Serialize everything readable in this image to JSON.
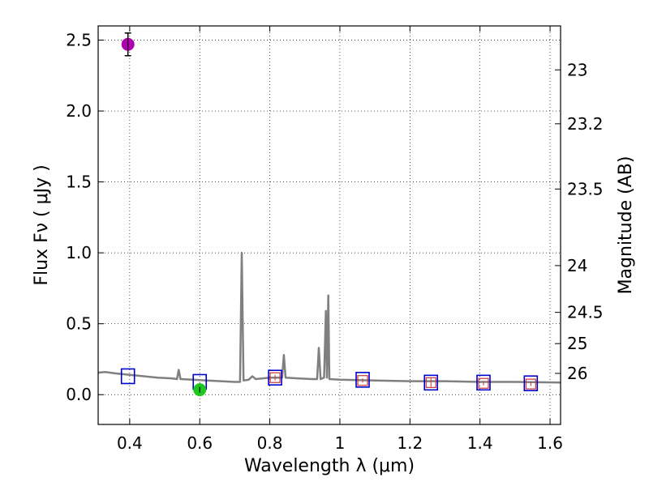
{
  "chart_data": {
    "type": "scatter",
    "xlabel": "Wavelength  λ (μm)",
    "ylabel": "Flux  Fν  ( μJy )",
    "y2label": "Magnitude (AB)",
    "xlim": [
      0.31,
      1.63
    ],
    "ylim": [
      -0.21,
      2.6
    ],
    "xticks": [
      0.4,
      0.6,
      0.8,
      1.0,
      1.2,
      1.4,
      1.6
    ],
    "xtick_labels": [
      "0.4",
      "0.6",
      "0.8",
      "1",
      "1.2",
      "1.4",
      "1.6"
    ],
    "yticks": [
      0.0,
      0.5,
      1.0,
      1.5,
      2.0,
      2.5
    ],
    "ytick_labels": [
      "0.0",
      "0.5",
      "1.0",
      "1.5",
      "2.0",
      "2.5"
    ],
    "y2ticks": [
      {
        "label": "23",
        "flux": 2.29
      },
      {
        "label": "23.2",
        "flux": 1.91
      },
      {
        "label": "23.5",
        "flux": 1.45
      },
      {
        "label": "24",
        "flux": 0.91
      },
      {
        "label": "24.5",
        "flux": 0.58
      },
      {
        "label": "25",
        "flux": 0.36
      },
      {
        "label": "26",
        "flux": 0.15
      }
    ],
    "grid": true,
    "sed_model": {
      "color": "#808080",
      "points": [
        [
          0.31,
          0.155
        ],
        [
          0.33,
          0.16
        ],
        [
          0.36,
          0.15
        ],
        [
          0.4,
          0.14
        ],
        [
          0.44,
          0.13
        ],
        [
          0.48,
          0.12
        ],
        [
          0.52,
          0.115
        ],
        [
          0.535,
          0.11
        ],
        [
          0.54,
          0.175
        ],
        [
          0.545,
          0.11
        ],
        [
          0.58,
          0.105
        ],
        [
          0.62,
          0.1
        ],
        [
          0.66,
          0.095
        ],
        [
          0.7,
          0.09
        ],
        [
          0.715,
          0.09
        ],
        [
          0.72,
          1.0
        ],
        [
          0.725,
          0.1
        ],
        [
          0.74,
          0.105
        ],
        [
          0.75,
          0.13
        ],
        [
          0.76,
          0.11
        ],
        [
          0.78,
          0.115
        ],
        [
          0.8,
          0.12
        ],
        [
          0.82,
          0.12
        ],
        [
          0.835,
          0.12
        ],
        [
          0.84,
          0.28
        ],
        [
          0.845,
          0.12
        ],
        [
          0.88,
          0.115
        ],
        [
          0.92,
          0.11
        ],
        [
          0.935,
          0.11
        ],
        [
          0.94,
          0.33
        ],
        [
          0.945,
          0.11
        ],
        [
          0.955,
          0.12
        ],
        [
          0.96,
          0.59
        ],
        [
          0.963,
          0.12
        ],
        [
          0.967,
          0.7
        ],
        [
          0.97,
          0.11
        ],
        [
          1.0,
          0.105
        ],
        [
          1.1,
          0.1
        ],
        [
          1.2,
          0.095
        ],
        [
          1.3,
          0.095
        ],
        [
          1.4,
          0.09
        ],
        [
          1.5,
          0.09
        ],
        [
          1.63,
          0.085
        ]
      ]
    },
    "model_photometry": {
      "color": "#0000cc",
      "x": [
        0.395,
        0.6,
        0.815,
        1.065,
        1.26,
        1.41,
        1.545
      ],
      "y": [
        0.13,
        0.09,
        0.12,
        0.105,
        0.085,
        0.085,
        0.08
      ]
    },
    "observed_photometry": {
      "color": "#cc3333",
      "x": [
        0.815,
        1.065,
        1.26,
        1.41,
        1.545
      ],
      "y": [
        0.12,
        0.1,
        0.085,
        0.08,
        0.075
      ],
      "err": [
        0.02,
        0.015,
        0.03,
        0.015,
        0.015
      ]
    },
    "detections": [
      {
        "x": 0.395,
        "y": 2.47,
        "err": 0.08,
        "color": "#b000b0"
      },
      {
        "x": 0.6,
        "y": 0.035,
        "err": 0.02,
        "color": "#1ec81e"
      }
    ]
  }
}
